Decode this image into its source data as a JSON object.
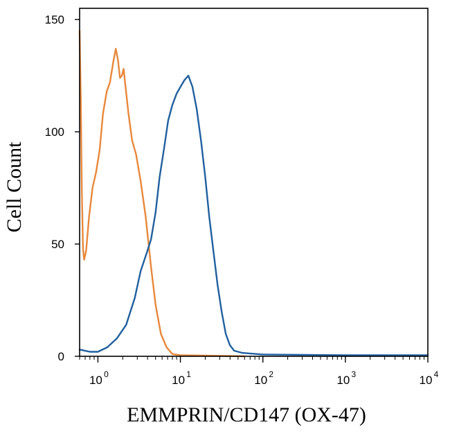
{
  "chart_data": {
    "type": "line",
    "title": "",
    "xlabel": "EMMPRIN/CD147 (OX-47)",
    "ylabel": "Cell Count",
    "x_scale": "log",
    "xlim": [
      0.6,
      10000
    ],
    "ylim": [
      0,
      155
    ],
    "y_ticks": [
      0,
      50,
      100,
      150
    ],
    "x_ticks": [
      {
        "value": 1,
        "base": "10",
        "exp": "0"
      },
      {
        "value": 10,
        "base": "10",
        "exp": "1"
      },
      {
        "value": 100,
        "base": "10",
        "exp": "2"
      },
      {
        "value": 1000,
        "base": "10",
        "exp": "3"
      },
      {
        "value": 10000,
        "base": "10",
        "exp": "4"
      }
    ],
    "grid": false,
    "legend": "none",
    "series": [
      {
        "color": "#e8873a",
        "points": [
          [
            0.6,
            145
          ],
          [
            0.62,
            115
          ],
          [
            0.64,
            72
          ],
          [
            0.66,
            48
          ],
          [
            0.68,
            43
          ],
          [
            0.72,
            47
          ],
          [
            0.78,
            62
          ],
          [
            0.86,
            75
          ],
          [
            0.95,
            82
          ],
          [
            1.05,
            92
          ],
          [
            1.15,
            108
          ],
          [
            1.28,
            118
          ],
          [
            1.4,
            122
          ],
          [
            1.55,
            132
          ],
          [
            1.65,
            137
          ],
          [
            1.75,
            132
          ],
          [
            1.85,
            124
          ],
          [
            1.95,
            125
          ],
          [
            2.05,
            128
          ],
          [
            2.15,
            121
          ],
          [
            2.35,
            108
          ],
          [
            2.6,
            96
          ],
          [
            2.9,
            90
          ],
          [
            3.3,
            78
          ],
          [
            3.8,
            62
          ],
          [
            4.4,
            40
          ],
          [
            5.0,
            23
          ],
          [
            5.8,
            10
          ],
          [
            6.8,
            4
          ],
          [
            8.0,
            1
          ],
          [
            10,
            0.5
          ],
          [
            20,
            0.3
          ],
          [
            60,
            0
          ]
        ]
      },
      {
        "color": "#1f5f9f",
        "points": [
          [
            0.6,
            3
          ],
          [
            0.8,
            2
          ],
          [
            1.0,
            2
          ],
          [
            1.3,
            4
          ],
          [
            1.7,
            8
          ],
          [
            2.2,
            14
          ],
          [
            2.8,
            26
          ],
          [
            3.3,
            38
          ],
          [
            3.9,
            46
          ],
          [
            4.4,
            52
          ],
          [
            5.0,
            64
          ],
          [
            5.6,
            80
          ],
          [
            6.3,
            92
          ],
          [
            7.1,
            105
          ],
          [
            8.0,
            112
          ],
          [
            9.0,
            117
          ],
          [
            10.0,
            120
          ],
          [
            11.2,
            123
          ],
          [
            12.5,
            125
          ],
          [
            14.0,
            120
          ],
          [
            15.8,
            110
          ],
          [
            17.8,
            96
          ],
          [
            20.0,
            80
          ],
          [
            22.4,
            62
          ],
          [
            25.1,
            47
          ],
          [
            28.2,
            32
          ],
          [
            31.6,
            20
          ],
          [
            35.5,
            10
          ],
          [
            39.8,
            5
          ],
          [
            44.7,
            2.5
          ],
          [
            56.2,
            1.5
          ],
          [
            100,
            0.8
          ],
          [
            1000,
            0.5
          ],
          [
            10000,
            0.5
          ]
        ]
      }
    ]
  }
}
